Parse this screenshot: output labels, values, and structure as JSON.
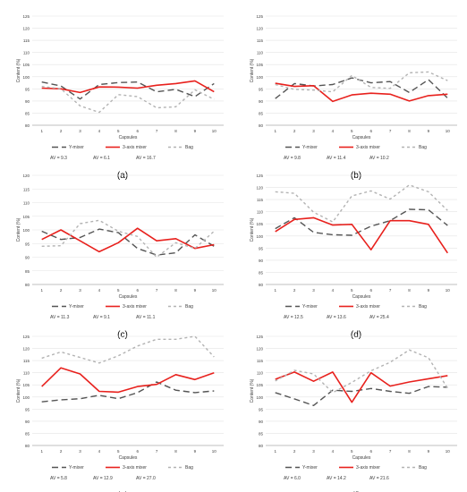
{
  "colors": {
    "y_mixer": "#555555",
    "axis3_mixer": "#e8211d",
    "bag": "#b3b3b3",
    "grid": "#e3e3e3",
    "axis": "#bfbfbf",
    "text": "#404040"
  },
  "chart_data": [
    {
      "panel_label": "(a)",
      "type": "line",
      "xlabel": "Capsules",
      "ylabel": "Content (%)",
      "ylim": [
        80,
        125
      ],
      "yticks": [
        80,
        85,
        90,
        95,
        100,
        105,
        110,
        115,
        120,
        125
      ],
      "categories": [
        "1",
        "2",
        "3",
        "4",
        "5",
        "6",
        "7",
        "8",
        "9",
        "10"
      ],
      "series": [
        {
          "name": "Y-mixer",
          "values": [
            97.8,
            96.2,
            90.8,
            96.8,
            97.6,
            97.8,
            93.8,
            94.8,
            91.8,
            97.2
          ]
        },
        {
          "name": "3-axis mixer",
          "values": [
            95.3,
            95.0,
            93.5,
            95.8,
            95.7,
            95.3,
            96.5,
            97.2,
            98.3,
            93.8
          ]
        },
        {
          "name": "Bag",
          "values": [
            96.0,
            95.0,
            88.0,
            85.3,
            92.6,
            91.8,
            87.2,
            87.6,
            94.6,
            90.7
          ]
        }
      ],
      "av_labels": [
        "AV = 9.3",
        "AV = 6.1",
        "AV = 16.7"
      ]
    },
    {
      "panel_label": "(b)",
      "type": "line",
      "xlabel": "Capsules",
      "ylabel": "Content (%)",
      "ylim": [
        80,
        125
      ],
      "yticks": [
        80,
        85,
        90,
        95,
        100,
        105,
        110,
        115,
        120,
        125
      ],
      "categories": [
        "1",
        "2",
        "3",
        "4",
        "5",
        "6",
        "7",
        "8",
        "9",
        "10"
      ],
      "series": [
        {
          "name": "Y-mixer",
          "values": [
            91.0,
            97.2,
            96.2,
            96.8,
            99.5,
            97.5,
            98.0,
            93.5,
            98.8,
            91.2
          ]
        },
        {
          "name": "3-axis mixer",
          "values": [
            97.3,
            96.0,
            96.3,
            89.8,
            92.5,
            93.2,
            92.8,
            90.0,
            92.2,
            92.8
          ]
        },
        {
          "name": "Bag",
          "values": [
            96.8,
            94.8,
            94.5,
            93.8,
            100.5,
            95.6,
            95.2,
            101.6,
            102.0,
            98.4
          ]
        }
      ],
      "av_labels": [
        "AV = 9.8",
        "AV = 11.4",
        "AV = 10.2"
      ]
    },
    {
      "panel_label": "(c)",
      "type": "line",
      "xlabel": "Capsules",
      "ylabel": "Content (%)",
      "ylim": [
        80,
        120
      ],
      "yticks": [
        80,
        85,
        90,
        95,
        100,
        105,
        110,
        115,
        120
      ],
      "categories": [
        "1",
        "2",
        "3",
        "4",
        "5",
        "6",
        "7",
        "8",
        "9",
        "10"
      ],
      "series": [
        {
          "name": "Y-mixer",
          "values": [
            99.5,
            96.5,
            97.2,
            100.3,
            99.0,
            93.2,
            90.8,
            91.6,
            98.2,
            94.0
          ]
        },
        {
          "name": "3-axis mixer",
          "values": [
            96.5,
            100.0,
            96.0,
            92.0,
            95.3,
            100.6,
            96.0,
            96.8,
            93.2,
            94.6
          ]
        },
        {
          "name": "Bag",
          "values": [
            94.0,
            94.2,
            102.3,
            103.5,
            99.5,
            97.6,
            90.0,
            95.3,
            93.2,
            99.5
          ]
        }
      ],
      "av_labels": [
        "AV = 11.3",
        "AV = 9.1",
        "AV = 11.1"
      ]
    },
    {
      "panel_label": "(d)",
      "type": "line",
      "xlabel": "Capsules",
      "ylabel": "Content (%)",
      "ylim": [
        80,
        125
      ],
      "yticks": [
        80,
        85,
        90,
        95,
        100,
        105,
        110,
        115,
        120,
        125
      ],
      "categories": [
        "1",
        "2",
        "3",
        "4",
        "5",
        "6",
        "7",
        "8",
        "9",
        "10"
      ],
      "series": [
        {
          "name": "Y-mixer",
          "values": [
            103.0,
            107.5,
            101.5,
            100.5,
            100.3,
            104.0,
            106.3,
            111.0,
            110.8,
            104.3
          ]
        },
        {
          "name": "3-axis mixer",
          "values": [
            101.8,
            106.8,
            107.5,
            104.5,
            104.8,
            94.3,
            106.3,
            106.3,
            104.8,
            93.0
          ]
        },
        {
          "name": "Bag",
          "values": [
            118.2,
            117.6,
            109.8,
            105.8,
            116.5,
            118.6,
            115.2,
            121.0,
            118.2,
            110.5
          ]
        }
      ],
      "av_labels": [
        "AV = 12.5",
        "AV = 13.6",
        "AV = 25.4"
      ]
    },
    {
      "panel_label": "(e)",
      "type": "line",
      "xlabel": "Capsules",
      "ylabel": "Content (%)",
      "ylim": [
        80,
        125
      ],
      "yticks": [
        80,
        85,
        90,
        95,
        100,
        105,
        110,
        115,
        120,
        125
      ],
      "categories": [
        "1",
        "2",
        "3",
        "4",
        "5",
        "6",
        "7",
        "8",
        "9",
        "10"
      ],
      "series": [
        {
          "name": "Y-mixer",
          "values": [
            98.0,
            98.8,
            99.3,
            100.7,
            99.3,
            101.8,
            106.2,
            102.8,
            101.8,
            102.5
          ]
        },
        {
          "name": "3-axis mixer",
          "values": [
            104.3,
            112.0,
            109.5,
            102.3,
            102.0,
            104.3,
            105.2,
            109.2,
            107.2,
            110.0
          ]
        },
        {
          "name": "Bag",
          "values": [
            116.0,
            118.6,
            116.3,
            114.0,
            117.0,
            121.0,
            123.8,
            123.8,
            125.0,
            116.5
          ]
        }
      ],
      "av_labels": [
        "AV = 5.8",
        "AV = 12.9",
        "AV = 27.0"
      ]
    },
    {
      "panel_label": "(f)",
      "type": "line",
      "xlabel": "Capsules",
      "ylabel": "Content (%)",
      "ylim": [
        80,
        125
      ],
      "yticks": [
        80,
        85,
        90,
        95,
        100,
        105,
        110,
        115,
        120,
        125
      ],
      "categories": [
        "1",
        "2",
        "3",
        "4",
        "5",
        "6",
        "7",
        "8",
        "9",
        "10"
      ],
      "series": [
        {
          "name": "Y-mixer",
          "values": [
            101.8,
            99.2,
            96.5,
            102.8,
            102.3,
            103.5,
            102.3,
            101.5,
            104.3,
            104.0
          ]
        },
        {
          "name": "3-axis mixer",
          "values": [
            107.3,
            110.3,
            106.5,
            110.3,
            97.8,
            110.0,
            104.5,
            106.2,
            107.5,
            108.8
          ]
        },
        {
          "name": "Bag",
          "values": [
            106.6,
            111.0,
            109.5,
            101.8,
            106.0,
            110.8,
            114.3,
            119.4,
            116.2,
            103.6
          ]
        }
      ],
      "av_labels": [
        "AV = 6.0",
        "AV = 14.2",
        "AV = 21.6"
      ]
    }
  ]
}
